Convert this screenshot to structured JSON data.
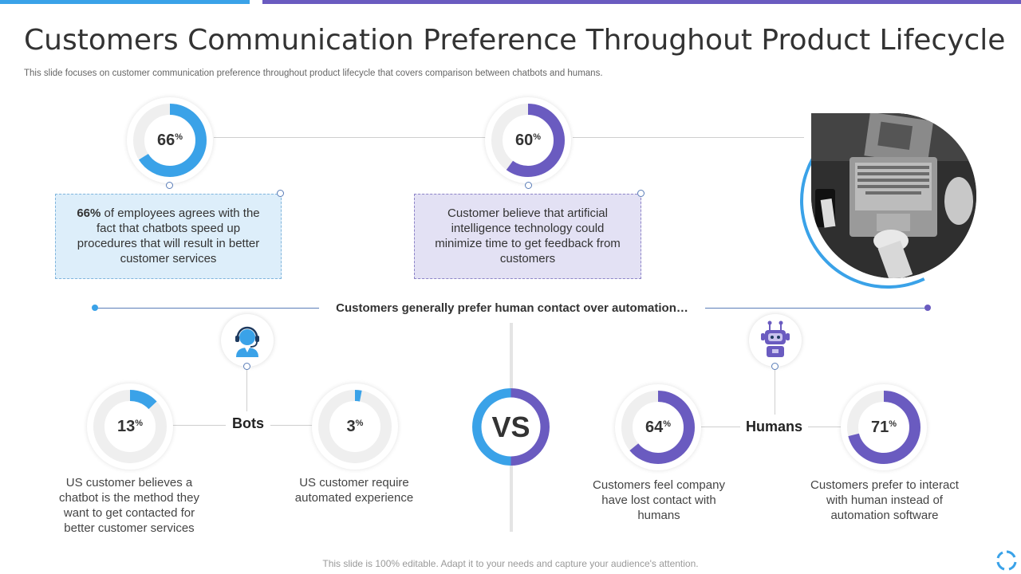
{
  "title": "Customers Communication Preference Throughout Product Lifecycle",
  "subtitle": "This slide focuses on customer communication preference throughout product lifecycle that covers comparison between chatbots and humans.",
  "colors": {
    "blue": "#3aa2e8",
    "purple": "#6a5bc0",
    "track": "#efefef"
  },
  "top_stats": [
    {
      "value": "66",
      "unit": "%",
      "percent": 66,
      "color": "blue",
      "text_bold": "66%",
      "text": " of employees agrees with the fact that chatbots speed up procedures that will result in better customer services"
    },
    {
      "value": "60",
      "unit": "%",
      "percent": 60,
      "color": "purple",
      "text": "Customer believe that artificial intelligence technology could minimize time to get feedback from customers"
    }
  ],
  "banner": "Customers generally prefer human contact over automation…",
  "bots": {
    "label": "Bots",
    "icon": "customer-support-agent-icon",
    "stats": [
      {
        "value": "13",
        "unit": "%",
        "percent": 13,
        "text": "US customer believes a chatbot is the method they want to get contacted for better customer services"
      },
      {
        "value": "3",
        "unit": "%",
        "percent": 3,
        "text": "US customer require automated experience"
      }
    ]
  },
  "vs_label": "VS",
  "humans": {
    "label": "Humans",
    "icon": "robot-icon",
    "stats": [
      {
        "value": "64",
        "unit": "%",
        "percent": 64,
        "text": "Customers feel company have lost contact with humans"
      },
      {
        "value": "71",
        "unit": "%",
        "percent": 71,
        "text": "Customers prefer to interact with human instead of automation software"
      }
    ]
  },
  "footer": "This slide is 100% editable. Adapt it to your needs and capture your audience's attention."
}
